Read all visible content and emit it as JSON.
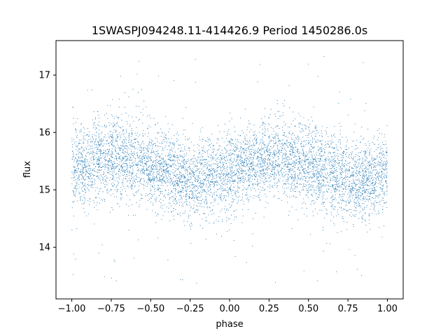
{
  "chart_data": {
    "type": "scatter",
    "title": "1SWASPJ094248.11-414426.9 Period 1450286.0s",
    "xlabel": "phase",
    "ylabel": "flux",
    "xlim": [
      -1.1,
      1.1
    ],
    "ylim": [
      13.1,
      17.6
    ],
    "x_ticks": [
      -1.0,
      -0.75,
      -0.5,
      -0.25,
      0.0,
      0.25,
      0.5,
      0.75,
      1.0
    ],
    "x_tick_labels": [
      "−1.00",
      "−0.75",
      "−0.50",
      "−0.25",
      "0.00",
      "0.25",
      "0.50",
      "0.75",
      "1.00"
    ],
    "y_ticks": [
      14,
      15,
      16,
      17
    ],
    "y_tick_labels": [
      "14",
      "15",
      "16",
      "17"
    ],
    "point_color": "#1f77b4",
    "grid": false,
    "series": [
      {
        "x_range": [
          -1.0,
          1.0
        ],
        "trend": {
          "x": [
            -1.0,
            -0.9,
            -0.8,
            -0.7,
            -0.6,
            -0.5,
            -0.4,
            -0.3,
            -0.2,
            -0.1,
            0.0,
            0.1,
            0.2,
            0.3,
            0.4,
            0.5,
            0.6,
            0.7,
            0.8,
            0.9,
            1.0
          ],
          "y": [
            15.35,
            15.45,
            15.55,
            15.6,
            15.5,
            15.4,
            15.35,
            15.2,
            15.15,
            15.25,
            15.35,
            15.45,
            15.5,
            15.55,
            15.5,
            15.45,
            15.35,
            15.2,
            15.15,
            15.2,
            15.3
          ]
        },
        "spread": 0.35,
        "outlier_range": [
          13.3,
          17.4
        ]
      }
    ]
  }
}
